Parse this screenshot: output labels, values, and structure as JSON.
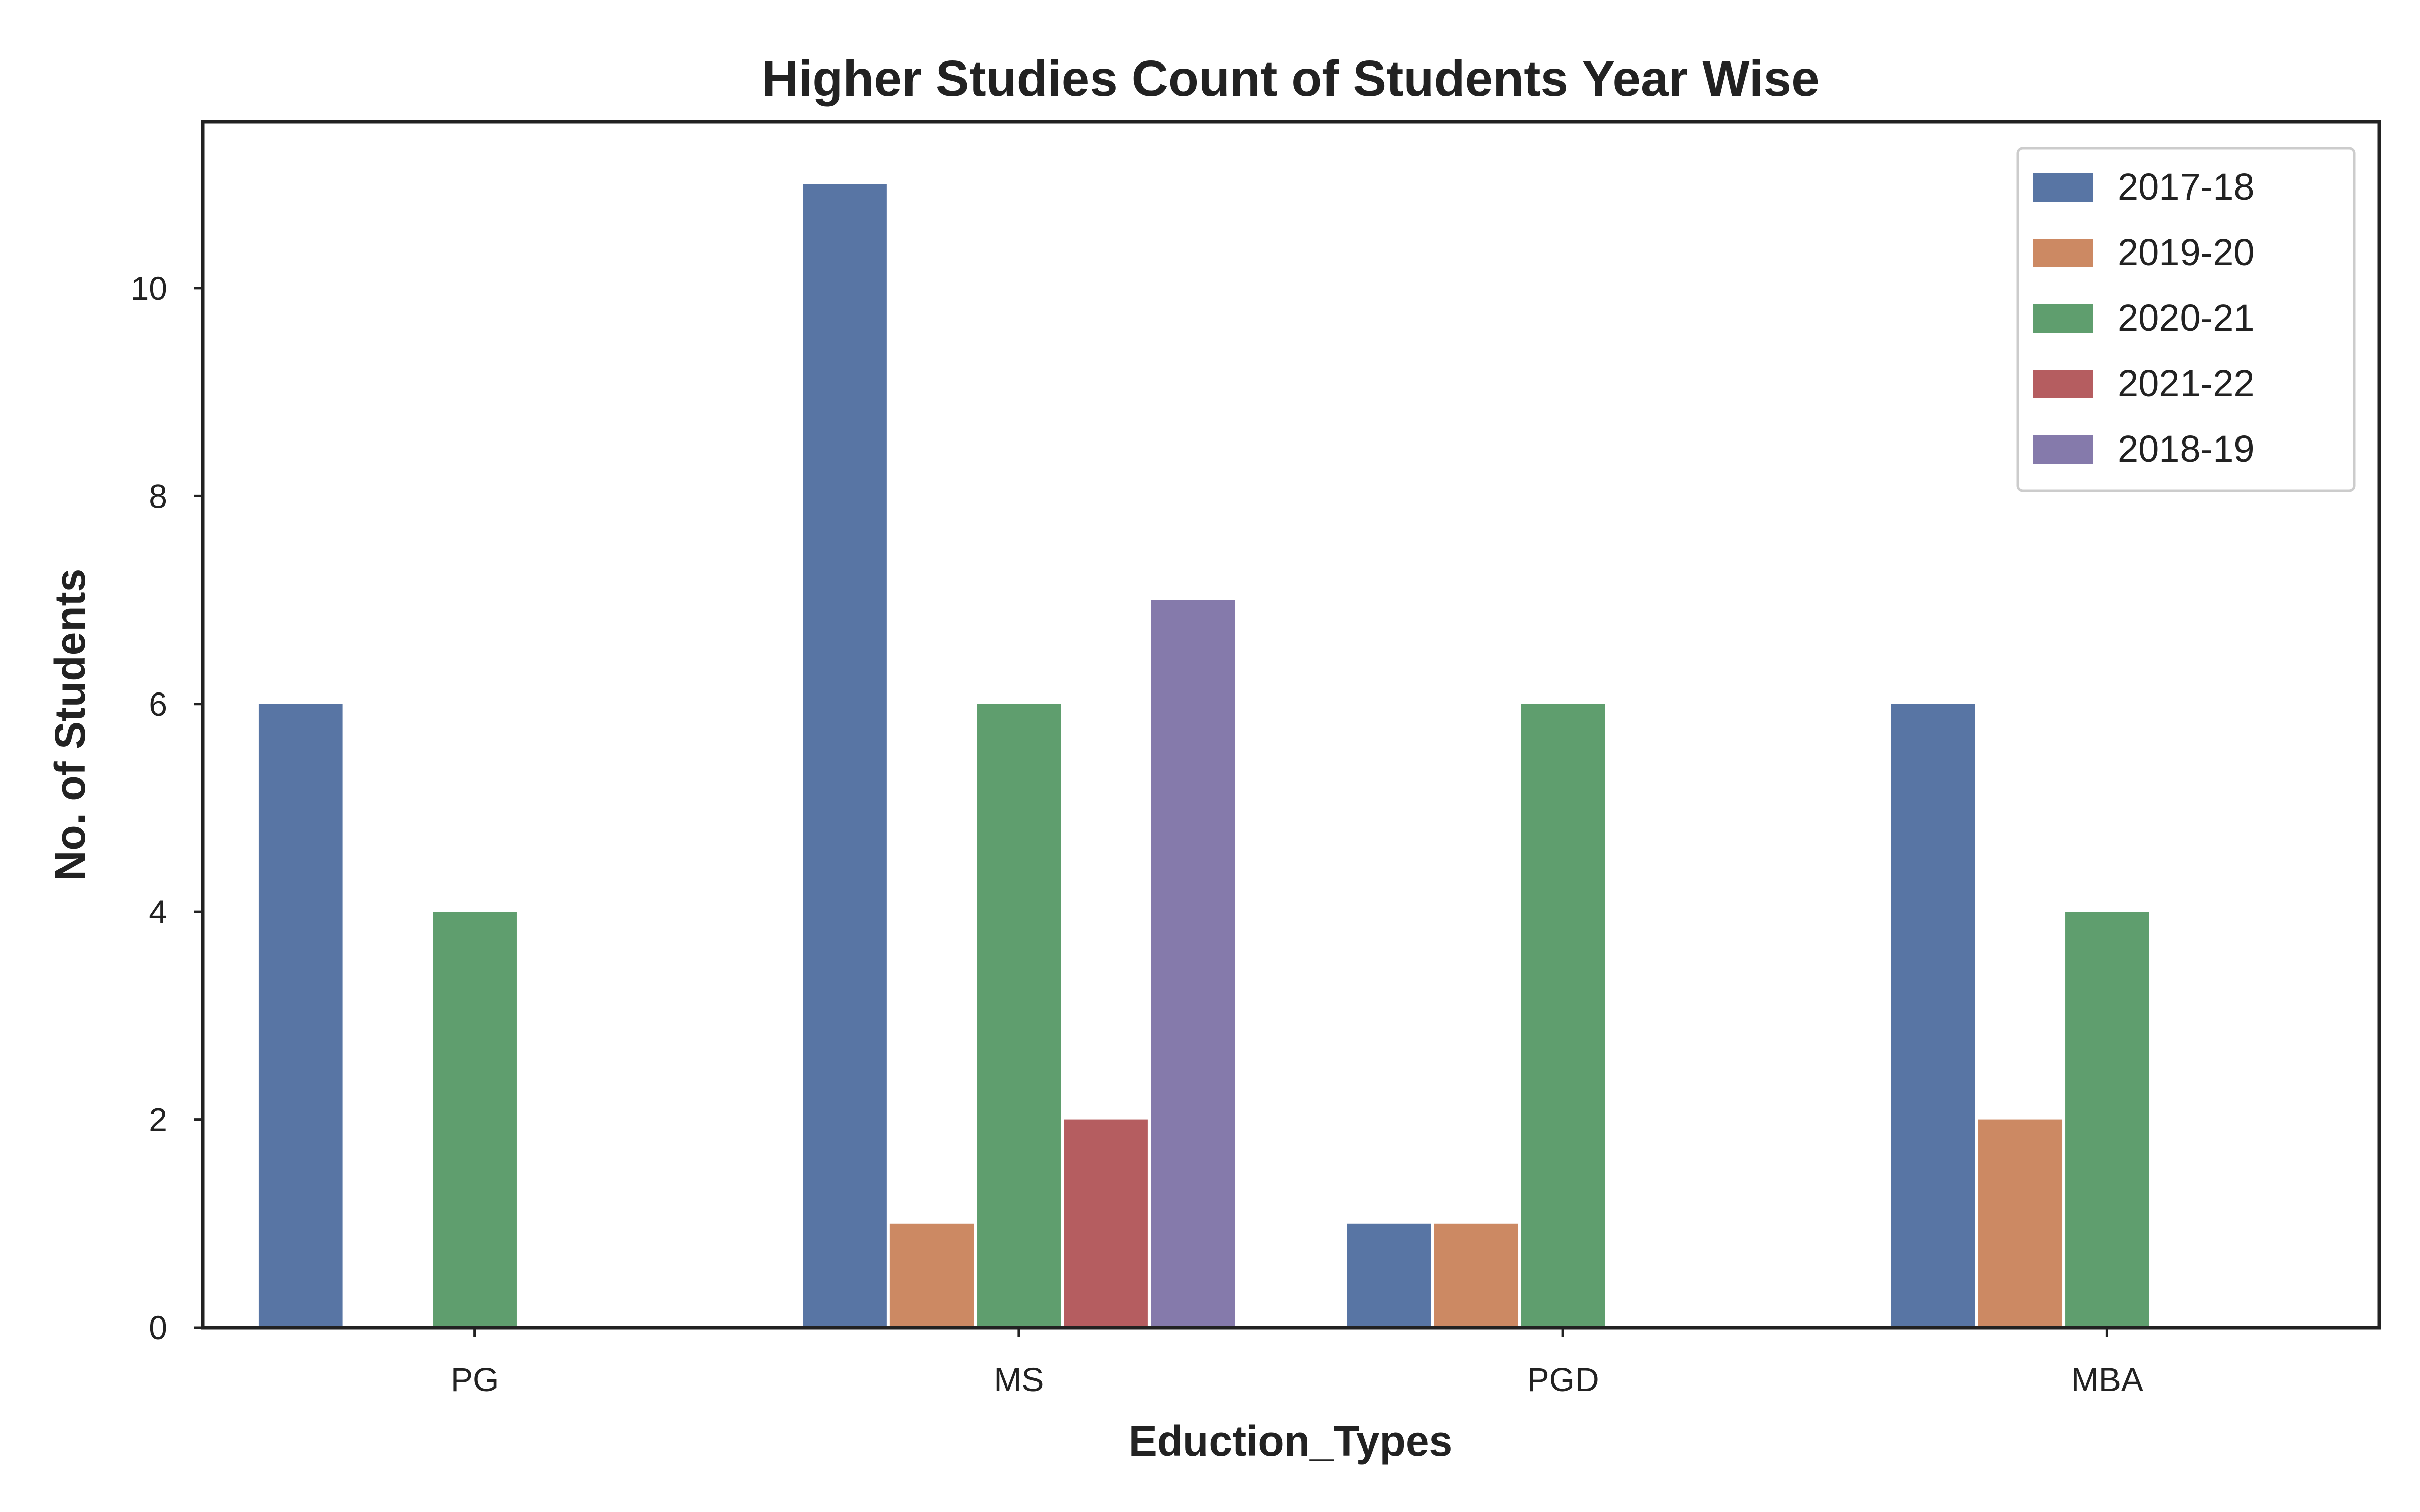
{
  "chart_data": {
    "type": "bar",
    "title": "Higher Studies Count of Students Year Wise",
    "xlabel": "Eduction_Types",
    "ylabel": "No. of Students",
    "categories": [
      "PG",
      "MS",
      "PGD",
      "MBA"
    ],
    "series": [
      {
        "name": "2017-18",
        "color": "#5875a4",
        "values": [
          6,
          11,
          1,
          6
        ]
      },
      {
        "name": "2019-20",
        "color": "#cc8963",
        "values": [
          0,
          1,
          1,
          2
        ]
      },
      {
        "name": "2020-21",
        "color": "#5f9e6e",
        "values": [
          4,
          6,
          6,
          4
        ]
      },
      {
        "name": "2021-22",
        "color": "#b55d60",
        "values": [
          0,
          2,
          0,
          0
        ]
      },
      {
        "name": "2018-19",
        "color": "#857aab",
        "values": [
          0,
          7,
          0,
          0
        ]
      }
    ],
    "ylim": [
      0,
      11.6
    ],
    "yticks": [
      0,
      2,
      4,
      6,
      8,
      10
    ],
    "grid": false,
    "legend_position": "top-right"
  }
}
